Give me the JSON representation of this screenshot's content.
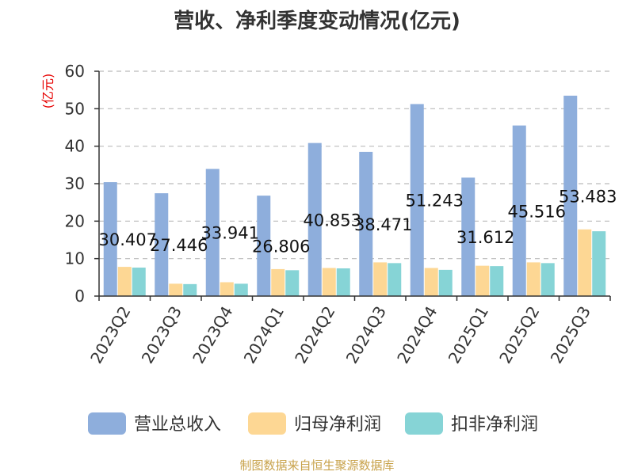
{
  "chart_data": {
    "type": "bar",
    "title": "营收、净利季度变动情况(亿元)",
    "ylabel": "(亿元)",
    "xlabel": "",
    "ylim": [
      0,
      60
    ],
    "yticks": [
      0,
      10,
      20,
      30,
      40,
      50,
      60
    ],
    "grid": true,
    "legend_position": "bottom",
    "categories": [
      "2023Q2",
      "2023Q3",
      "2023Q4",
      "2024Q1",
      "2024Q2",
      "2024Q3",
      "2024Q4",
      "2025Q1",
      "2025Q2",
      "2025Q3"
    ],
    "series": [
      {
        "name": "营业总收入",
        "color": "#8eaedc",
        "values": [
          30.407,
          27.446,
          33.941,
          26.806,
          40.853,
          38.471,
          51.243,
          31.612,
          45.516,
          53.483
        ]
      },
      {
        "name": "归母净利润",
        "color": "#fdd794",
        "values": [
          7.8,
          3.3,
          3.7,
          7.2,
          7.5,
          9.0,
          7.5,
          8.1,
          9.0,
          17.8
        ]
      },
      {
        "name": "扣非净利润",
        "color": "#86d4d6",
        "values": [
          7.6,
          3.2,
          3.3,
          6.9,
          7.4,
          8.8,
          7.0,
          8.0,
          8.8,
          17.3
        ]
      }
    ],
    "data_labels": [
      "30.407",
      "27.446",
      "33.941",
      "26.806",
      "40.853",
      "38.471",
      "51.243",
      "31.612",
      "45.516",
      "53.483"
    ]
  },
  "source_text": "制图数据来自恒生聚源数据库"
}
